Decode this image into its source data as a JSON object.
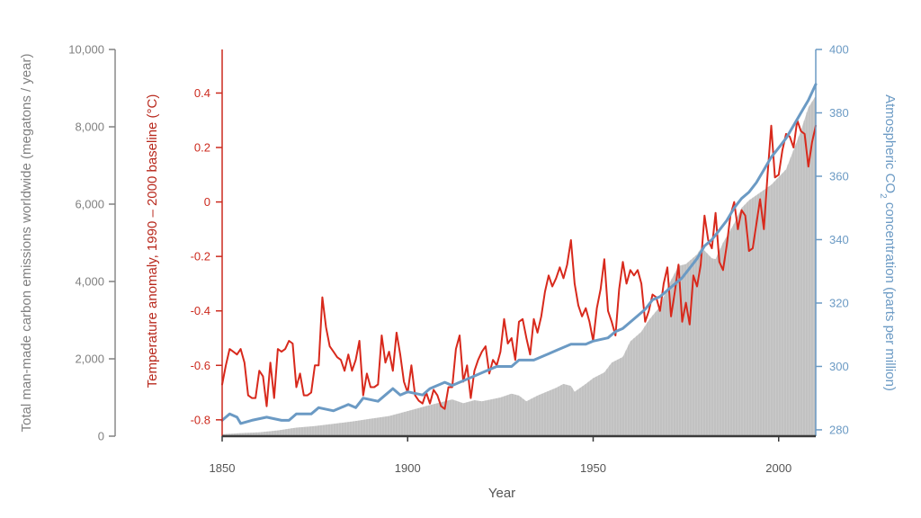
{
  "chart_data": {
    "type": "area",
    "xlabel": "Year",
    "xlim": [
      1850,
      2010
    ],
    "x_ticks": [
      "1850",
      "1900",
      "1950",
      "2000"
    ],
    "x_tick_values": [
      1850,
      1900,
      1950,
      2000
    ],
    "left_outer_axis": {
      "label": "Total man-made carbon emissions worldwide (megatons / year)",
      "ylim": [
        0,
        10000
      ],
      "ticks": [
        "0",
        "2,000",
        "4,000",
        "6,000",
        "8,000",
        "10,000"
      ],
      "tick_values": [
        0,
        2000,
        4000,
        6000,
        8000,
        10000
      ],
      "color": "#808080"
    },
    "left_inner_axis": {
      "label": "Temperature anomaly, 1990 – 2000 baseline (°C)",
      "ylim": [
        -0.86,
        0.56
      ],
      "ticks": [
        "-0.8",
        "-0.6",
        "-0.4",
        "-0.2",
        "0",
        "0.2",
        "0.4"
      ],
      "tick_values": [
        -0.8,
        -0.6,
        -0.4,
        -0.2,
        0,
        0.2,
        0.4
      ],
      "color": "#cc2a1e"
    },
    "right_axis": {
      "label_pre": "Atmospheric CO",
      "label_sub": "2",
      "label_post": " concentration (parts per million)",
      "ylim": [
        278,
        400
      ],
      "ticks": [
        "280",
        "300",
        "320",
        "340",
        "360",
        "380",
        "400"
      ],
      "tick_values": [
        280,
        300,
        320,
        340,
        360,
        380,
        400
      ],
      "color": "#6b9ac4"
    },
    "series": [
      {
        "key": "emissions",
        "type": "area",
        "axis": "left_outer_axis",
        "color": "#c9c9c9",
        "points": [
          [
            1850,
            50
          ],
          [
            1855,
            80
          ],
          [
            1860,
            100
          ],
          [
            1865,
            150
          ],
          [
            1870,
            220
          ],
          [
            1875,
            260
          ],
          [
            1880,
            320
          ],
          [
            1885,
            380
          ],
          [
            1890,
            450
          ],
          [
            1895,
            520
          ],
          [
            1900,
            650
          ],
          [
            1905,
            780
          ],
          [
            1910,
            900
          ],
          [
            1912,
            950
          ],
          [
            1915,
            850
          ],
          [
            1918,
            930
          ],
          [
            1920,
            900
          ],
          [
            1925,
            1000
          ],
          [
            1928,
            1100
          ],
          [
            1930,
            1050
          ],
          [
            1932,
            900
          ],
          [
            1935,
            1050
          ],
          [
            1940,
            1250
          ],
          [
            1942,
            1350
          ],
          [
            1944,
            1300
          ],
          [
            1945,
            1150
          ],
          [
            1948,
            1350
          ],
          [
            1950,
            1500
          ],
          [
            1953,
            1650
          ],
          [
            1955,
            1900
          ],
          [
            1958,
            2050
          ],
          [
            1960,
            2450
          ],
          [
            1963,
            2700
          ],
          [
            1965,
            3000
          ],
          [
            1968,
            3350
          ],
          [
            1970,
            3850
          ],
          [
            1973,
            4400
          ],
          [
            1975,
            4450
          ],
          [
            1978,
            4700
          ],
          [
            1979,
            4850
          ],
          [
            1980,
            4800
          ],
          [
            1982,
            4600
          ],
          [
            1983,
            4580
          ],
          [
            1985,
            5000
          ],
          [
            1988,
            5500
          ],
          [
            1990,
            5900
          ],
          [
            1992,
            6100
          ],
          [
            1995,
            6300
          ],
          [
            1998,
            6500
          ],
          [
            2000,
            6700
          ],
          [
            2002,
            6900
          ],
          [
            2004,
            7400
          ],
          [
            2006,
            7900
          ],
          [
            2008,
            8500
          ],
          [
            2010,
            8800
          ]
        ]
      },
      {
        "key": "temperature",
        "type": "line",
        "axis": "left_inner_axis",
        "color": "#d8291c",
        "points": [
          [
            1850,
            -0.67
          ],
          [
            1851,
            -0.6
          ],
          [
            1852,
            -0.54
          ],
          [
            1853,
            -0.55
          ],
          [
            1854,
            -0.56
          ],
          [
            1855,
            -0.54
          ],
          [
            1856,
            -0.59
          ],
          [
            1857,
            -0.71
          ],
          [
            1858,
            -0.72
          ],
          [
            1859,
            -0.72
          ],
          [
            1860,
            -0.62
          ],
          [
            1861,
            -0.64
          ],
          [
            1862,
            -0.75
          ],
          [
            1863,
            -0.59
          ],
          [
            1864,
            -0.72
          ],
          [
            1865,
            -0.54
          ],
          [
            1866,
            -0.55
          ],
          [
            1867,
            -0.54
          ],
          [
            1868,
            -0.51
          ],
          [
            1869,
            -0.52
          ],
          [
            1870,
            -0.68
          ],
          [
            1871,
            -0.63
          ],
          [
            1872,
            -0.71
          ],
          [
            1873,
            -0.71
          ],
          [
            1874,
            -0.7
          ],
          [
            1875,
            -0.6
          ],
          [
            1876,
            -0.6
          ],
          [
            1877,
            -0.35
          ],
          [
            1878,
            -0.46
          ],
          [
            1879,
            -0.53
          ],
          [
            1880,
            -0.55
          ],
          [
            1881,
            -0.57
          ],
          [
            1882,
            -0.58
          ],
          [
            1883,
            -0.62
          ],
          [
            1884,
            -0.56
          ],
          [
            1885,
            -0.62
          ],
          [
            1886,
            -0.58
          ],
          [
            1887,
            -0.51
          ],
          [
            1888,
            -0.71
          ],
          [
            1889,
            -0.63
          ],
          [
            1890,
            -0.68
          ],
          [
            1891,
            -0.68
          ],
          [
            1892,
            -0.67
          ],
          [
            1893,
            -0.49
          ],
          [
            1894,
            -0.59
          ],
          [
            1895,
            -0.55
          ],
          [
            1896,
            -0.62
          ],
          [
            1897,
            -0.48
          ],
          [
            1898,
            -0.56
          ],
          [
            1899,
            -0.66
          ],
          [
            1900,
            -0.7
          ],
          [
            1901,
            -0.6
          ],
          [
            1902,
            -0.71
          ],
          [
            1903,
            -0.73
          ],
          [
            1904,
            -0.74
          ],
          [
            1905,
            -0.7
          ],
          [
            1906,
            -0.74
          ],
          [
            1907,
            -0.69
          ],
          [
            1908,
            -0.71
          ],
          [
            1909,
            -0.75
          ],
          [
            1910,
            -0.76
          ],
          [
            1911,
            -0.68
          ],
          [
            1912,
            -0.68
          ],
          [
            1913,
            -0.54
          ],
          [
            1914,
            -0.49
          ],
          [
            1915,
            -0.66
          ],
          [
            1916,
            -0.6
          ],
          [
            1917,
            -0.72
          ],
          [
            1918,
            -0.62
          ],
          [
            1919,
            -0.58
          ],
          [
            1920,
            -0.55
          ],
          [
            1921,
            -0.53
          ],
          [
            1922,
            -0.63
          ],
          [
            1923,
            -0.58
          ],
          [
            1924,
            -0.6
          ],
          [
            1925,
            -0.55
          ],
          [
            1926,
            -0.43
          ],
          [
            1927,
            -0.52
          ],
          [
            1928,
            -0.5
          ],
          [
            1929,
            -0.58
          ],
          [
            1930,
            -0.44
          ],
          [
            1931,
            -0.43
          ],
          [
            1932,
            -0.5
          ],
          [
            1933,
            -0.56
          ],
          [
            1934,
            -0.43
          ],
          [
            1935,
            -0.48
          ],
          [
            1936,
            -0.42
          ],
          [
            1937,
            -0.33
          ],
          [
            1938,
            -0.27
          ],
          [
            1939,
            -0.31
          ],
          [
            1940,
            -0.28
          ],
          [
            1941,
            -0.24
          ],
          [
            1942,
            -0.28
          ],
          [
            1943,
            -0.23
          ],
          [
            1944,
            -0.14
          ],
          [
            1945,
            -0.3
          ],
          [
            1946,
            -0.38
          ],
          [
            1947,
            -0.42
          ],
          [
            1948,
            -0.39
          ],
          [
            1949,
            -0.44
          ],
          [
            1950,
            -0.51
          ],
          [
            1951,
            -0.39
          ],
          [
            1952,
            -0.32
          ],
          [
            1953,
            -0.21
          ],
          [
            1954,
            -0.4
          ],
          [
            1955,
            -0.44
          ],
          [
            1956,
            -0.49
          ],
          [
            1957,
            -0.32
          ],
          [
            1958,
            -0.22
          ],
          [
            1959,
            -0.3
          ],
          [
            1960,
            -0.25
          ],
          [
            1961,
            -0.27
          ],
          [
            1962,
            -0.25
          ],
          [
            1963,
            -0.3
          ],
          [
            1964,
            -0.44
          ],
          [
            1965,
            -0.4
          ],
          [
            1966,
            -0.34
          ],
          [
            1967,
            -0.35
          ],
          [
            1968,
            -0.4
          ],
          [
            1969,
            -0.3
          ],
          [
            1970,
            -0.24
          ],
          [
            1971,
            -0.42
          ],
          [
            1972,
            -0.33
          ],
          [
            1973,
            -0.23
          ],
          [
            1974,
            -0.44
          ],
          [
            1975,
            -0.37
          ],
          [
            1976,
            -0.45
          ],
          [
            1977,
            -0.27
          ],
          [
            1978,
            -0.31
          ],
          [
            1979,
            -0.23
          ],
          [
            1980,
            -0.05
          ],
          [
            1981,
            -0.14
          ],
          [
            1982,
            -0.17
          ],
          [
            1983,
            -0.04
          ],
          [
            1984,
            -0.22
          ],
          [
            1985,
            -0.25
          ],
          [
            1986,
            -0.16
          ],
          [
            1987,
            -0.05
          ],
          [
            1988,
            0.0
          ],
          [
            1989,
            -0.1
          ],
          [
            1990,
            -0.03
          ],
          [
            1991,
            -0.05
          ],
          [
            1992,
            -0.18
          ],
          [
            1993,
            -0.17
          ],
          [
            1994,
            -0.08
          ],
          [
            1995,
            0.01
          ],
          [
            1996,
            -0.1
          ],
          [
            1997,
            0.1
          ],
          [
            1998,
            0.28
          ],
          [
            1999,
            0.09
          ],
          [
            2000,
            0.1
          ],
          [
            2001,
            0.19
          ],
          [
            2002,
            0.25
          ],
          [
            2003,
            0.24
          ],
          [
            2004,
            0.2
          ],
          [
            2005,
            0.3
          ],
          [
            2006,
            0.26
          ],
          [
            2007,
            0.25
          ],
          [
            2008,
            0.13
          ],
          [
            2009,
            0.22
          ],
          [
            2010,
            0.28
          ]
        ]
      },
      {
        "key": "co2",
        "type": "line",
        "axis": "right_axis",
        "color": "#6b9ac4",
        "points": [
          [
            1850,
            283
          ],
          [
            1852,
            285
          ],
          [
            1854,
            284
          ],
          [
            1855,
            282
          ],
          [
            1858,
            283
          ],
          [
            1862,
            284
          ],
          [
            1866,
            283
          ],
          [
            1868,
            283
          ],
          [
            1870,
            285
          ],
          [
            1874,
            285
          ],
          [
            1876,
            287
          ],
          [
            1880,
            286
          ],
          [
            1884,
            288
          ],
          [
            1886,
            287
          ],
          [
            1888,
            290
          ],
          [
            1892,
            289
          ],
          [
            1894,
            291
          ],
          [
            1896,
            293
          ],
          [
            1898,
            291
          ],
          [
            1900,
            292
          ],
          [
            1904,
            291
          ],
          [
            1906,
            293
          ],
          [
            1910,
            295
          ],
          [
            1912,
            294
          ],
          [
            1914,
            295
          ],
          [
            1916,
            296
          ],
          [
            1920,
            298
          ],
          [
            1924,
            300
          ],
          [
            1928,
            300
          ],
          [
            1930,
            302
          ],
          [
            1934,
            302
          ],
          [
            1938,
            304
          ],
          [
            1940,
            305
          ],
          [
            1944,
            307
          ],
          [
            1948,
            307
          ],
          [
            1950,
            308
          ],
          [
            1954,
            309
          ],
          [
            1956,
            311
          ],
          [
            1958,
            312
          ],
          [
            1960,
            314
          ],
          [
            1962,
            316
          ],
          [
            1964,
            318
          ],
          [
            1966,
            321
          ],
          [
            1968,
            322
          ],
          [
            1970,
            324
          ],
          [
            1972,
            326
          ],
          [
            1974,
            328
          ],
          [
            1976,
            331
          ],
          [
            1978,
            334
          ],
          [
            1980,
            338
          ],
          [
            1982,
            340
          ],
          [
            1984,
            343
          ],
          [
            1986,
            346
          ],
          [
            1988,
            350
          ],
          [
            1990,
            353
          ],
          [
            1992,
            355
          ],
          [
            1994,
            358
          ],
          [
            1996,
            362
          ],
          [
            1998,
            366
          ],
          [
            2000,
            369
          ],
          [
            2002,
            372
          ],
          [
            2004,
            376
          ],
          [
            2006,
            380
          ],
          [
            2008,
            384
          ],
          [
            2010,
            389
          ]
        ]
      }
    ]
  }
}
